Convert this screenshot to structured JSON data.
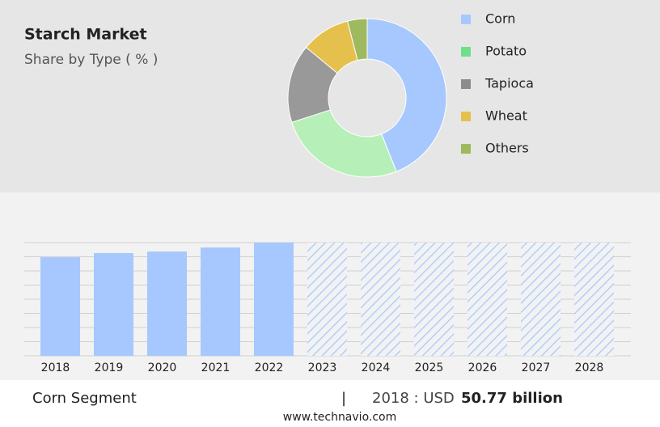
{
  "chart_data": [
    {
      "type": "pie",
      "title": "Starch Market",
      "subtitle": "Share by Type ( % )",
      "categories": [
        "Corn",
        "Potato",
        "Tapioca",
        "Wheat",
        "Others"
      ],
      "values": [
        44,
        26,
        16,
        10,
        4
      ],
      "colors": [
        "#a6c8ff",
        "#b6f0b8",
        "#999999",
        "#e5c04d",
        "#9fba5e"
      ],
      "legend_colors": [
        "#a6c8ff",
        "#6ee08a",
        "#8c8c8c",
        "#e5c04d",
        "#9fba5e"
      ],
      "donut": true
    },
    {
      "type": "bar",
      "categories": [
        "2018",
        "2019",
        "2020",
        "2021",
        "2022",
        "2023",
        "2024",
        "2025",
        "2026",
        "2027",
        "2028"
      ],
      "values": [
        50.77,
        52.9,
        53.7,
        55.8,
        58.3,
        null,
        null,
        null,
        null,
        null,
        null
      ],
      "color": "#a6c8ff",
      "ylim": [
        0,
        58.3
      ],
      "grid": true
    }
  ],
  "footer": {
    "segment": "Corn Segment",
    "separator": "|",
    "year_label": "2018 : USD",
    "value": "50.77 billion",
    "source": "www.technavio.com"
  }
}
